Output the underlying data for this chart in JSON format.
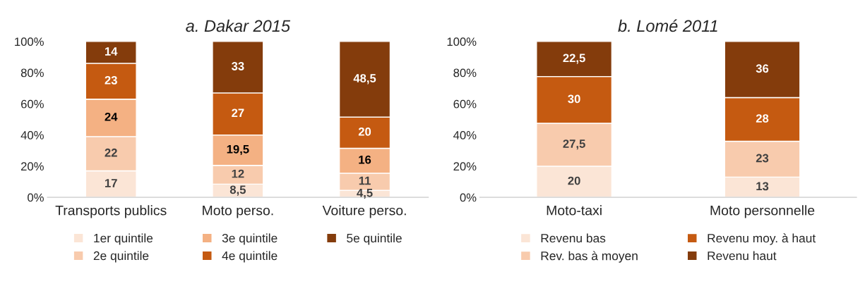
{
  "chart_data": [
    {
      "type": "bar",
      "title": "a. Dakar 2015",
      "stacked": true,
      "categories": [
        "Transports publics",
        "Moto perso.",
        "Voiture perso."
      ],
      "series": [
        {
          "name": "1er quintile",
          "color": "#fbe5d6",
          "values": [
            17,
            8.5,
            4.5
          ],
          "value_labels": [
            "17",
            "8,5",
            "4,5"
          ]
        },
        {
          "name": "2e quintile",
          "color": "#f8cbad",
          "values": [
            22,
            12,
            11
          ],
          "value_labels": [
            "22",
            "12",
            "11"
          ]
        },
        {
          "name": "3e quintile",
          "color": "#f4b183",
          "values": [
            24,
            19.5,
            16
          ],
          "value_labels": [
            "24",
            "19,5",
            "16"
          ]
        },
        {
          "name": "4e quintile",
          "color": "#c55a11",
          "values": [
            23,
            27,
            20
          ],
          "value_labels": [
            "23",
            "27",
            "20"
          ]
        },
        {
          "name": "5e quintile",
          "color": "#843c0c",
          "values": [
            14,
            33,
            48.5
          ],
          "value_labels": [
            "14",
            "33",
            "48,5"
          ]
        }
      ],
      "ylim": [
        0,
        100
      ],
      "yticks": [
        {
          "value": 0,
          "label": "0%"
        },
        {
          "value": 20,
          "label": "20%"
        },
        {
          "value": 40,
          "label": "40%"
        },
        {
          "value": 60,
          "label": "60%"
        },
        {
          "value": 80,
          "label": "80%"
        },
        {
          "value": 100,
          "label": "100%"
        }
      ],
      "grid": false,
      "legend": "bottom"
    },
    {
      "type": "bar",
      "title": "b. Lomé 2011",
      "stacked": true,
      "categories": [
        "Moto-taxi",
        "Moto personnelle"
      ],
      "series": [
        {
          "name": "Revenu bas",
          "color": "#fbe5d6",
          "values": [
            20,
            13
          ],
          "value_labels": [
            "20",
            "13"
          ]
        },
        {
          "name": "Rev. bas à moyen",
          "color": "#f8cbad",
          "values": [
            27.5,
            23
          ],
          "value_labels": [
            "27,5",
            "23"
          ]
        },
        {
          "name": "Revenu moy. à haut",
          "color": "#c55a11",
          "values": [
            30,
            28
          ],
          "value_labels": [
            "30",
            "28"
          ]
        },
        {
          "name": "Revenu haut",
          "color": "#843c0c",
          "values": [
            22.5,
            36
          ],
          "value_labels": [
            "22,5",
            "36"
          ]
        }
      ],
      "ylim": [
        0,
        100
      ],
      "yticks": [
        {
          "value": 0,
          "label": "0%"
        },
        {
          "value": 20,
          "label": "20%"
        },
        {
          "value": 40,
          "label": "40%"
        },
        {
          "value": 60,
          "label": "60%"
        },
        {
          "value": 80,
          "label": "80%"
        },
        {
          "value": 100,
          "label": "100%"
        }
      ],
      "grid": false,
      "legend": "bottom"
    }
  ]
}
